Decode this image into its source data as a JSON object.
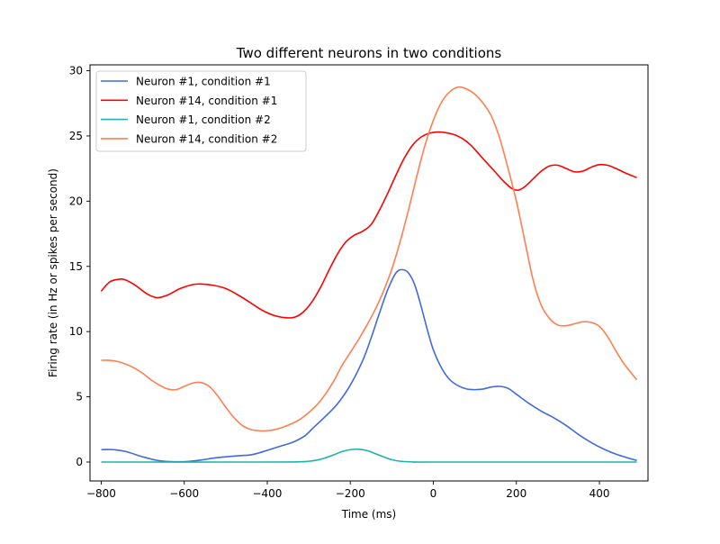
{
  "chart_data": {
    "type": "line",
    "title": "Two different neurons in two conditions",
    "xlabel": "Time (ms)",
    "ylabel": "Firing rate (in Hz or spikes per second)",
    "xlim": [
      -827,
      517
    ],
    "ylim": [
      -1.45,
      30.45
    ],
    "xticks": [
      -800,
      -600,
      -400,
      -200,
      0,
      200,
      400
    ],
    "xtick_labels": [
      "−800",
      "−600",
      "−400",
      "−200",
      "0",
      "200",
      "400"
    ],
    "yticks": [
      0,
      5,
      10,
      15,
      20,
      25,
      30
    ],
    "ytick_labels": [
      "0",
      "5",
      "10",
      "15",
      "20",
      "25",
      "30"
    ],
    "grid": false,
    "legend_position": "top-left",
    "series": [
      {
        "name": "Neuron #1, condition #1",
        "color": "#4169e1",
        "x": [
          -800,
          -770,
          -740,
          -700,
          -660,
          -620,
          -590,
          -560,
          -530,
          -500,
          -470,
          -440,
          -420,
          -400,
          -370,
          -340,
          -310,
          -290,
          -260,
          -230,
          -200,
          -170,
          -150,
          -130,
          -110,
          -90,
          -75,
          -60,
          -45,
          -30,
          -15,
          0,
          20,
          40,
          60,
          80,
          100,
          120,
          140,
          160,
          180,
          200,
          230,
          260,
          290,
          320,
          350,
          380,
          410,
          440,
          470,
          490
        ],
        "y": [
          0.95,
          0.95,
          0.8,
          0.4,
          0.1,
          0.02,
          0.05,
          0.15,
          0.3,
          0.4,
          0.48,
          0.55,
          0.7,
          0.9,
          1.2,
          1.5,
          2.0,
          2.6,
          3.5,
          4.5,
          5.9,
          7.8,
          9.5,
          11.4,
          13.2,
          14.5,
          14.75,
          14.5,
          13.6,
          12.0,
          10.2,
          8.6,
          7.2,
          6.3,
          5.85,
          5.6,
          5.55,
          5.6,
          5.75,
          5.8,
          5.65,
          5.2,
          4.5,
          3.9,
          3.4,
          2.8,
          2.1,
          1.5,
          1.0,
          0.6,
          0.3,
          0.12
        ]
      },
      {
        "name": "Neuron #14, condition #1",
        "color": "#ff0000",
        "x": [
          -800,
          -780,
          -760,
          -745,
          -720,
          -690,
          -665,
          -640,
          -610,
          -580,
          -560,
          -530,
          -500,
          -470,
          -440,
          -410,
          -380,
          -350,
          -330,
          -310,
          -290,
          -270,
          -250,
          -230,
          -210,
          -190,
          -170,
          -150,
          -130,
          -110,
          -90,
          -70,
          -50,
          -30,
          -10,
          10,
          30,
          50,
          70,
          90,
          110,
          130,
          150,
          170,
          190,
          205,
          220,
          240,
          260,
          280,
          300,
          320,
          340,
          360,
          380,
          400,
          420,
          440,
          460,
          490
        ],
        "y": [
          13.1,
          13.8,
          14.0,
          14.0,
          13.6,
          12.9,
          12.6,
          12.8,
          13.3,
          13.6,
          13.65,
          13.55,
          13.3,
          12.8,
          12.2,
          11.6,
          11.2,
          11.05,
          11.15,
          11.6,
          12.4,
          13.5,
          14.8,
          16.0,
          16.9,
          17.4,
          17.7,
          18.2,
          19.3,
          20.6,
          22.0,
          23.3,
          24.3,
          24.9,
          25.2,
          25.3,
          25.25,
          25.1,
          24.8,
          24.3,
          23.6,
          22.9,
          22.2,
          21.5,
          20.95,
          20.85,
          21.1,
          21.7,
          22.3,
          22.7,
          22.75,
          22.5,
          22.25,
          22.3,
          22.6,
          22.8,
          22.75,
          22.5,
          22.2,
          21.8
        ]
      },
      {
        "name": "Neuron #1, condition #2",
        "color": "#20b2aa",
        "x": [
          -800,
          -400,
          -320,
          -300,
          -280,
          -260,
          -240,
          -220,
          -200,
          -180,
          -160,
          -140,
          -120,
          -100,
          -80,
          -60,
          -40,
          0,
          490
        ],
        "y": [
          0,
          0,
          0.02,
          0.06,
          0.15,
          0.32,
          0.55,
          0.8,
          0.95,
          0.98,
          0.88,
          0.65,
          0.4,
          0.18,
          0.06,
          0.02,
          0.0,
          0,
          0
        ]
      },
      {
        "name": "Neuron #14, condition #2",
        "color": "#ff7f50",
        "x": [
          -800,
          -780,
          -760,
          -740,
          -720,
          -700,
          -680,
          -660,
          -640,
          -620,
          -600,
          -580,
          -560,
          -540,
          -520,
          -500,
          -480,
          -460,
          -440,
          -420,
          -400,
          -380,
          -360,
          -340,
          -320,
          -300,
          -280,
          -260,
          -240,
          -220,
          -200,
          -180,
          -160,
          -140,
          -120,
          -100,
          -80,
          -60,
          -40,
          -20,
          0,
          20,
          40,
          60,
          80,
          100,
          120,
          140,
          160,
          180,
          200,
          220,
          240,
          260,
          280,
          300,
          320,
          340,
          360,
          380,
          400,
          420,
          440,
          460,
          490
        ],
        "y": [
          7.8,
          7.8,
          7.7,
          7.5,
          7.2,
          6.8,
          6.3,
          5.9,
          5.6,
          5.55,
          5.8,
          6.05,
          6.1,
          5.8,
          5.1,
          4.2,
          3.4,
          2.8,
          2.5,
          2.4,
          2.4,
          2.5,
          2.7,
          2.95,
          3.3,
          3.8,
          4.4,
          5.2,
          6.2,
          7.4,
          8.4,
          9.4,
          10.5,
          11.7,
          13.1,
          14.8,
          16.9,
          19.3,
          21.9,
          24.3,
          26.2,
          27.6,
          28.4,
          28.75,
          28.6,
          28.2,
          27.5,
          26.5,
          24.8,
          22.5,
          20.0,
          17.0,
          14.0,
          12.0,
          11.0,
          10.5,
          10.45,
          10.6,
          10.75,
          10.7,
          10.4,
          9.6,
          8.5,
          7.5,
          6.3
        ]
      }
    ]
  }
}
